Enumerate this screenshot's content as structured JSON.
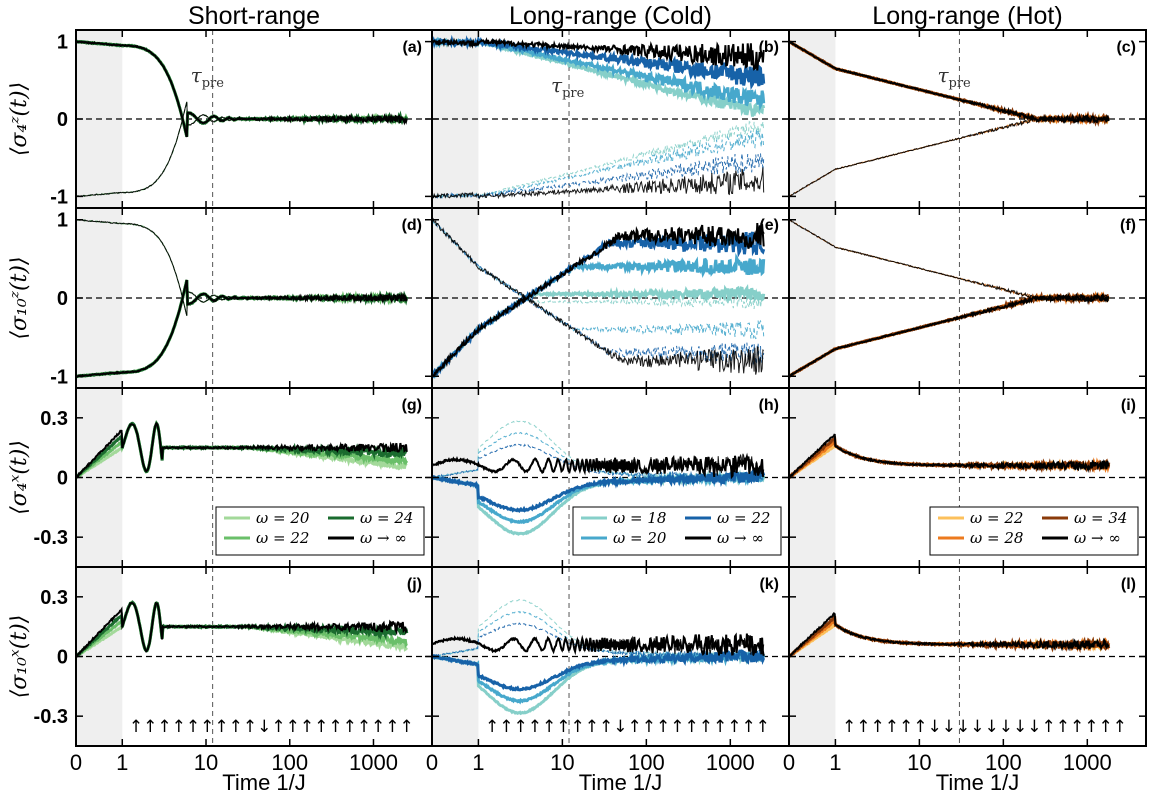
{
  "columns": [
    "Short-range",
    "Long-range (Cold)",
    "Long-range (Hot)"
  ],
  "ylabels": [
    "⟨σ_4^z(t)⟩",
    "⟨σ_10^z(t)⟩",
    "⟨σ_4^x(t)⟩",
    "⟨σ_10^x(t)⟩"
  ],
  "xlabel": "Time 1/J",
  "xticks": [
    "0",
    "1",
    "10",
    "100",
    "1000"
  ],
  "yticks_z": [
    "1",
    "0",
    "-1"
  ],
  "yticks_x": [
    "0.3",
    "0",
    "-0.3"
  ],
  "tau_label": "τ_pre",
  "panel_labels": [
    "(a)",
    "(b)",
    "(c)",
    "(d)",
    "(e)",
    "(f)",
    "(g)",
    "(h)",
    "(i)",
    "(j)",
    "(k)",
    "(l)"
  ],
  "legends": [
    [
      {
        "label": "ω = 20",
        "color": "#a3d99a"
      },
      {
        "label": "ω = 24",
        "color": "#1a6b2e"
      },
      {
        "label": "ω = 22",
        "color": "#6abf69"
      },
      {
        "label": "ω → ∞",
        "color": "#000000"
      }
    ],
    [
      {
        "label": "ω = 18",
        "color": "#86cfc9"
      },
      {
        "label": "ω = 22",
        "color": "#1762a8"
      },
      {
        "label": "ω = 20",
        "color": "#47a8cc"
      },
      {
        "label": "ω → ∞",
        "color": "#000000"
      }
    ],
    [
      {
        "label": "ω = 22",
        "color": "#fcc05c"
      },
      {
        "label": "ω = 34",
        "color": "#8a3a0a"
      },
      {
        "label": "ω = 28",
        "color": "#ec7a1e"
      },
      {
        "label": "ω → ∞",
        "color": "#000000"
      }
    ]
  ],
  "spin_patterns": [
    "↑↑↑↑↑↑↑↑↑↓↑↑↑↑↑↑↑↑↑↑",
    "↑↑↑↑↑↑↑↑↑↓↑↑↑↑↑↑↑↑↑↑",
    "↑↑↑↑↑↑↓↓↓↓↓↓↓↓↑↑↑↑↑↑"
  ],
  "chart_data": {
    "type": "line",
    "x_axis": {
      "scale": "symlog",
      "linear_below": 1,
      "xlim": [
        0,
        5000
      ],
      "tau_pre": [
        12,
        12,
        30
      ]
    },
    "colors": {
      "short": [
        "#a3d99a",
        "#6abf69",
        "#1a6b2e",
        "#000000"
      ],
      "cold": [
        "#86cfc9",
        "#47a8cc",
        "#1762a8",
        "#000000"
      ],
      "hot": [
        "#fcc05c",
        "#ec7a1e",
        "#8a3a0a",
        "#000000"
      ]
    },
    "series_names": [
      [
        "ω = 20",
        "ω = 22",
        "ω = 24",
        "ω → ∞"
      ],
      [
        "ω = 18",
        "ω = 20",
        "ω = 22",
        "ω → ∞"
      ],
      [
        "ω = 22",
        "ω = 28",
        "ω = 34",
        "ω → ∞"
      ]
    ],
    "rows": [
      {
        "quantity": "σ_4^z",
        "ylim": [
          -1.15,
          1.15
        ]
      },
      {
        "quantity": "σ_10^z",
        "ylim": [
          -1.15,
          1.15
        ]
      },
      {
        "quantity": "σ_4^x",
        "ylim": [
          -0.45,
          0.45
        ]
      },
      {
        "quantity": "σ_10^x",
        "ylim": [
          -0.45,
          0.45
        ]
      }
    ],
    "approx_final_values": {
      "a": [
        0.0,
        0.0,
        0.0,
        0.0
      ],
      "b": [
        0.1,
        0.25,
        0.55,
        0.8
      ],
      "c": [
        0.0,
        0.0,
        0.0,
        0.0
      ],
      "d": [
        0.0,
        0.0,
        0.0,
        0.0
      ],
      "e": [
        0.05,
        0.4,
        0.7,
        0.85
      ],
      "f": [
        0.0,
        0.0,
        0.0,
        0.0
      ],
      "g": [
        0.05,
        0.08,
        0.12,
        0.15
      ],
      "h": [
        0.0,
        0.0,
        0.0,
        0.05
      ],
      "i": [
        0.04,
        0.05,
        0.06,
        0.06
      ],
      "j": [
        0.04,
        0.07,
        0.12,
        0.15
      ],
      "k": [
        0.0,
        0.0,
        0.0,
        0.05
      ],
      "l": [
        0.04,
        0.05,
        0.06,
        0.06
      ]
    }
  }
}
